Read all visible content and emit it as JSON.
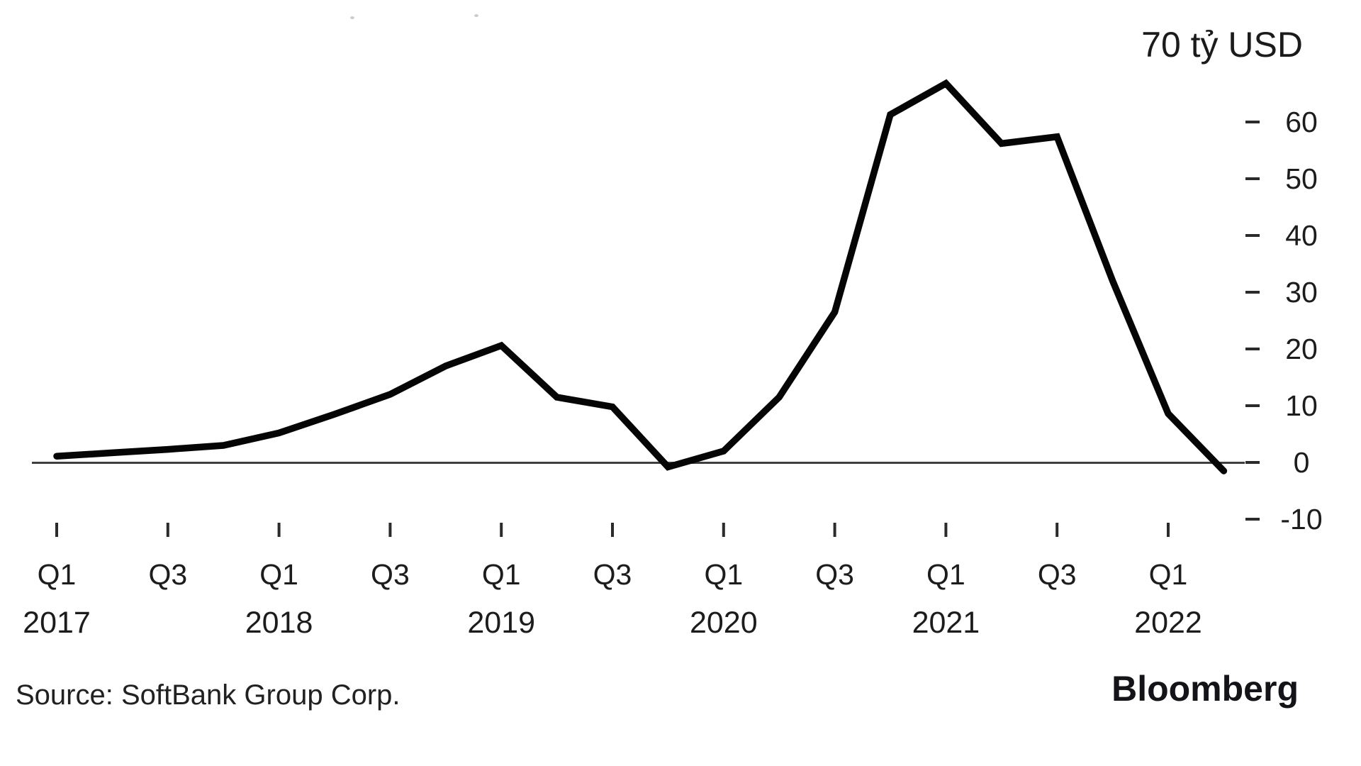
{
  "chart_data": {
    "type": "line",
    "unit_label": "70 tỷ USD",
    "categories": [
      "Q1 2017",
      "Q2 2017",
      "Q3 2017",
      "Q4 2017",
      "Q1 2018",
      "Q2 2018",
      "Q3 2018",
      "Q4 2018",
      "Q1 2019",
      "Q2 2019",
      "Q3 2019",
      "Q4 2019",
      "Q1 2020",
      "Q2 2020",
      "Q3 2020",
      "Q4 2020",
      "Q1 2021",
      "Q2 2021",
      "Q3 2021",
      "Q4 2021",
      "Q1 2022",
      "Q2 2022"
    ],
    "values": [
      1.1,
      1.7,
      2.3,
      3.0,
      5.2,
      8.5,
      12.0,
      17.0,
      20.6,
      11.5,
      9.8,
      -0.8,
      2.0,
      11.5,
      26.5,
      61.3,
      66.8,
      56.2,
      57.4,
      32.0,
      8.6,
      -1.5
    ],
    "line_color": "#050505",
    "grid": false,
    "legend": false,
    "y_axis": {
      "side": "right",
      "unit": "tỷ USD",
      "ticks": [
        60,
        50,
        40,
        30,
        20,
        10,
        0,
        -10
      ],
      "range": [
        -12.5,
        70
      ]
    },
    "x_axis": {
      "ticks": [
        {
          "index": 0,
          "quarter": "Q1",
          "year": "2017"
        },
        {
          "index": 2,
          "quarter": "Q3"
        },
        {
          "index": 4,
          "quarter": "Q1",
          "year": "2018"
        },
        {
          "index": 6,
          "quarter": "Q3"
        },
        {
          "index": 8,
          "quarter": "Q1",
          "year": "2019"
        },
        {
          "index": 10,
          "quarter": "Q3"
        },
        {
          "index": 12,
          "quarter": "Q1",
          "year": "2020"
        },
        {
          "index": 14,
          "quarter": "Q3"
        },
        {
          "index": 16,
          "quarter": "Q1",
          "year": "2021"
        },
        {
          "index": 18,
          "quarter": "Q3"
        },
        {
          "index": 20,
          "quarter": "Q1",
          "year": "2022"
        }
      ]
    },
    "source": "Source: SoftBank Group Corp.",
    "brand": "Bloomberg"
  }
}
